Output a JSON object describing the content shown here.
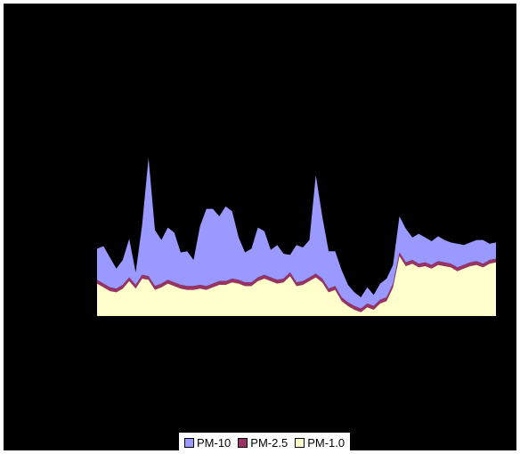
{
  "chart_data": {
    "type": "area",
    "stacked": true,
    "title": "",
    "xlabel": "",
    "ylabel": "",
    "grid": false,
    "legend_position": "bottom",
    "series": [
      {
        "name": "PM-1.0",
        "color": "#ffffcc",
        "values": [
          26,
          23,
          20,
          19,
          22,
          28,
          22,
          30,
          29,
          21,
          23,
          26,
          24,
          22,
          21,
          21,
          22,
          21,
          23,
          25,
          25,
          27,
          26,
          24,
          24,
          28,
          30,
          28,
          26,
          27,
          32,
          24,
          25,
          28,
          31,
          27,
          19,
          21,
          12,
          8,
          5,
          3,
          7,
          5,
          10,
          12,
          23,
          48,
          40,
          42,
          39,
          40,
          38,
          41,
          40,
          39,
          36,
          38,
          40,
          41,
          39,
          42,
          43
        ]
      },
      {
        "name": "PM-2.5",
        "color": "#993366",
        "values": [
          3,
          3,
          3,
          3,
          3,
          3,
          3,
          3,
          3,
          3,
          3,
          3,
          3,
          3,
          3,
          3,
          3,
          3,
          3,
          3,
          3,
          3,
          3,
          3,
          3,
          3,
          3,
          3,
          3,
          3,
          3,
          3,
          3,
          3,
          3,
          3,
          3,
          3,
          3,
          3,
          3,
          3,
          3,
          3,
          3,
          3,
          3,
          3,
          3,
          3,
          3,
          3,
          3,
          3,
          3,
          3,
          3,
          3,
          3,
          3,
          3,
          3,
          3
        ]
      },
      {
        "name": "PM-10",
        "color": "#9999ff",
        "values": [
          25,
          30,
          24,
          16,
          20,
          31,
          10,
          40,
          95,
          45,
          35,
          42,
          40,
          26,
          28,
          21,
          47,
          62,
          60,
          52,
          60,
          54,
          34,
          24,
          27,
          40,
          35,
          22,
          28,
          20,
          14,
          30,
          27,
          30,
          79,
          50,
          30,
          28,
          22,
          14,
          11,
          9,
          13,
          9,
          13,
          15,
          15,
          29,
          27,
          18,
          24,
          20,
          19,
          20,
          18,
          17,
          19,
          16,
          16,
          17,
          19,
          13,
          13
        ]
      }
    ]
  }
}
